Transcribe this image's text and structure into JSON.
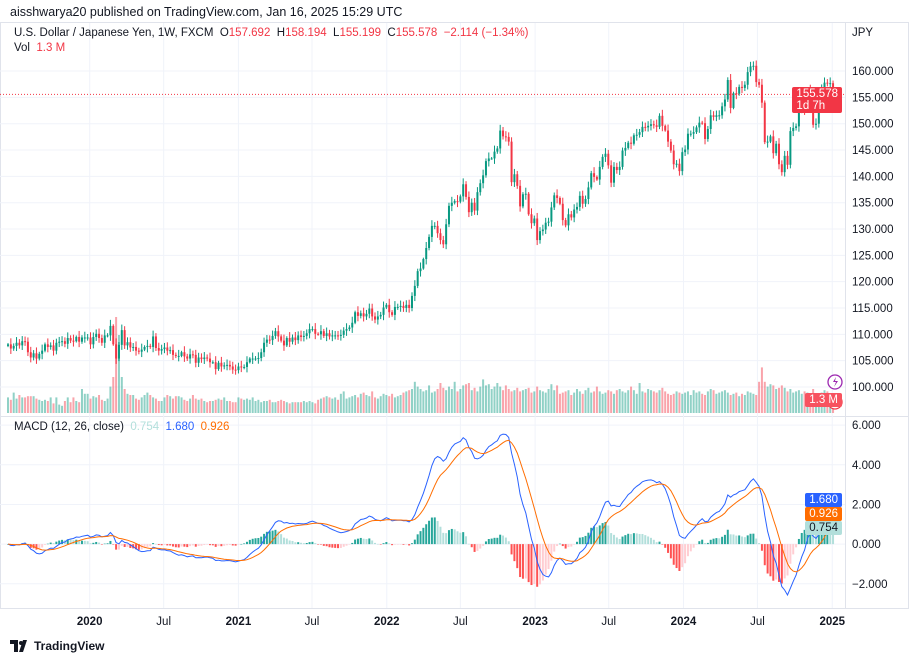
{
  "header": {
    "publisher": "aisshwarya20 published on TradingView.com, Jan 16, 2025 15:29 UTC",
    "currency": "JPY"
  },
  "legend": {
    "symbol": "U.S. Dollar / Japanese Yen, 1W, FXCM",
    "open_label": "O",
    "open": "157.692",
    "high_label": "H",
    "high": "158.194",
    "low_label": "L",
    "low": "155.199",
    "close_label": "C",
    "close": "155.578",
    "change": "−2.114 (−1.34%)",
    "vol_label": "Vol",
    "vol": "1.3 M"
  },
  "price_tag": {
    "price": "155.578",
    "countdown": "1d 7h",
    "volume": "1.3 M"
  },
  "macd": {
    "title": "MACD (12, 26, close)",
    "histogram": "0.754",
    "macd": "1.680",
    "signal": "0.926"
  },
  "colors": {
    "up": "#089981",
    "down": "#F23645",
    "macd": "#2962FF",
    "signal": "#FF6D00",
    "hist_up": "#26A69A",
    "hist_up_light": "#B2DFDB",
    "hist_down": "#FF5252",
    "hist_down_light": "#FFCDD2",
    "alert": "#9C27B0"
  },
  "footer": {
    "logo": "TradingView"
  },
  "chart_data": {
    "type": "candlestick",
    "interval": "1W",
    "first_week": "2019-06-14",
    "price_ylim": [
      95.06,
      164.0
    ],
    "price_ticks": [
      "160.000",
      "155.000",
      "150.000",
      "145.000",
      "140.000",
      "135.000",
      "130.000",
      "125.000",
      "120.000",
      "115.000",
      "110.000",
      "105.000",
      "100.000"
    ],
    "macd_ylim": [
      -2.97,
      6.26
    ],
    "macd_ticks": [
      "6.000",
      "4.000",
      "2.000",
      "0.000",
      "−2.000"
    ],
    "volume_unit": "M",
    "x_ticks": [
      {
        "label": "2020",
        "date": "2020-01-01",
        "bold": true
      },
      {
        "label": "Jul",
        "date": "2020-07-01"
      },
      {
        "label": "2021",
        "date": "2021-01-01",
        "bold": true
      },
      {
        "label": "Jul",
        "date": "2021-07-01"
      },
      {
        "label": "2022",
        "date": "2022-01-01",
        "bold": true
      },
      {
        "label": "Jul",
        "date": "2022-07-01"
      },
      {
        "label": "2023",
        "date": "2023-01-01",
        "bold": true
      },
      {
        "label": "Jul",
        "date": "2023-07-01"
      },
      {
        "label": "2024",
        "date": "2024-01-01",
        "bold": true
      },
      {
        "label": "Jul",
        "date": "2024-07-01"
      },
      {
        "label": "2025",
        "date": "2025-01-01",
        "bold": true
      }
    ],
    "last_open": 157.692,
    "last_high": 158.194,
    "last_low": 155.199,
    "close": [
      108.1,
      107.3,
      107.8,
      108.4,
      107.9,
      108.7,
      108.6,
      106.6,
      105.6,
      106.4,
      105.4,
      106.3,
      106.9,
      108.1,
      107.6,
      107.9,
      106.9,
      108.4,
      108.6,
      108.7,
      108.2,
      109.3,
      108.8,
      108.7,
      109.5,
      108.6,
      109.4,
      109.4,
      109.4,
      108.1,
      109.5,
      110.1,
      109.3,
      108.4,
      109.8,
      109.8,
      111.6,
      108.1,
      105.4,
      108.0,
      110.8,
      107.9,
      108.5,
      107.5,
      107.6,
      106.9,
      106.7,
      107.1,
      107.6,
      107.8,
      107.6,
      109.6,
      107.4,
      106.9,
      107.2,
      107.5,
      106.9,
      107.0,
      106.1,
      105.9,
      105.9,
      106.6,
      105.8,
      105.4,
      106.2,
      106.1,
      104.6,
      105.6,
      105.3,
      105.6,
      105.4,
      104.7,
      104.7,
      103.4,
      104.6,
      103.9,
      104.1,
      104.2,
      103.9,
      103.3,
      103.2,
      103.9,
      103.8,
      103.8,
      104.7,
      105.4,
      105.4,
      105.4,
      105.5,
      106.6,
      108.4,
      109.0,
      108.9,
      109.7,
      110.6,
      109.6,
      108.8,
      107.9,
      109.3,
      108.6,
      109.4,
      108.9,
      109.8,
      109.5,
      109.7,
      110.2,
      111.0,
      111.0,
      110.1,
      110.0,
      110.6,
      109.7,
      110.2,
      109.6,
      109.8,
      109.8,
      109.7,
      109.9,
      110.7,
      111.0,
      111.3,
      112.2,
      114.2,
      113.5,
      114.0,
      113.4,
      113.9,
      114.9,
      113.4,
      112.8,
      113.4,
      113.7,
      115.1,
      115.6,
      114.2,
      113.7,
      115.2,
      115.2,
      115.4,
      115.0,
      115.6,
      115.0,
      117.3,
      119.2,
      122.0,
      122.5,
      124.3,
      126.4,
      128.5,
      130.6,
      130.6,
      129.2,
      127.9,
      127.1,
      130.9,
      134.4,
      135.0,
      135.3,
      135.2,
      136.2,
      138.5,
      136.1,
      133.2,
      135.0,
      133.5,
      137.0,
      138.7,
      140.2,
      142.9,
      143.4,
      143.4,
      144.7,
      145.3,
      148.7,
      147.6,
      147.5,
      146.6,
      138.9,
      140.4,
      138.2,
      134.3,
      136.6,
      136.7,
      132.8,
      131.1,
      132.0,
      127.9,
      129.6,
      129.9,
      131.2,
      131.4,
      134.1,
      136.4,
      135.9,
      134.8,
      131.7,
      130.7,
      132.8,
      132.2,
      133.7,
      134.2,
      136.3,
      134.8,
      135.7,
      137.9,
      140.6,
      139.9,
      139.4,
      141.8,
      143.7,
      144.3,
      142.1,
      138.8,
      141.8,
      141.2,
      141.8,
      144.9,
      145.4,
      146.4,
      146.2,
      147.8,
      147.9,
      148.4,
      149.4,
      149.3,
      149.6,
      149.9,
      149.7,
      149.4,
      151.5,
      149.6,
      148.7,
      146.6,
      144.9,
      142.3,
      142.4,
      141.0,
      144.6,
      145.1,
      148.1,
      148.1,
      148.4,
      149.3,
      150.2,
      150.1,
      147.1,
      149.0,
      151.6,
      151.3,
      151.6,
      151.6,
      153.3,
      154.6,
      158.3,
      153.0,
      155.8,
      155.7,
      157.0,
      156.8,
      157.4,
      159.8,
      160.9,
      161.0,
      157.9,
      157.4,
      154.0,
      146.5,
      146.6,
      147.6,
      144.4,
      146.2,
      142.3,
      140.8,
      143.9,
      142.2,
      148.6,
      149.2,
      149.5,
      152.3,
      152.9,
      152.7,
      156.3,
      154.7,
      149.8,
      150.0,
      153.6,
      156.6,
      157.8,
      157.7,
      157.7,
      155.578
    ],
    "volume": [
      1.3,
      1.1,
      1.7,
      1.2,
      1.5,
      1.3,
      1.3,
      1.4,
      1.4,
      1.4,
      1.2,
      1.1,
      1.0,
      1.1,
      1.0,
      1.3,
      0.8,
      1.3,
      0.7,
      0.6,
      1.0,
      1.3,
      0.9,
      1.3,
      1.0,
      0.9,
      2.0,
      1.6,
      1.6,
      1.2,
      1.4,
      1.3,
      1.5,
      1.1,
      1.0,
      1.2,
      2.2,
      3.0,
      8.0,
      6.5,
      3.0,
      2.0,
      1.6,
      1.5,
      1.5,
      1.2,
      1.1,
      1.3,
      1.5,
      1.7,
      1.5,
      1.3,
      1.2,
      1.0,
      1.0,
      1.3,
      1.5,
      1.4,
      1.2,
      1.4,
      1.4,
      1.3,
      1.1,
      1.0,
      1.2,
      1.5,
      1.2,
      1.1,
      1.2,
      1.0,
      0.9,
      1.0,
      1.0,
      1.1,
      1.2,
      1.1,
      1.3,
      1.0,
      1.0,
      0.9,
      0.9,
      1.3,
      1.2,
      1.1,
      1.2,
      1.1,
      1.3,
      1.0,
      1.1,
      0.9,
      1.0,
      1.0,
      1.1,
      0.9,
      0.9,
      1.0,
      1.1,
      1.0,
      0.9,
      0.8,
      0.9,
      0.9,
      0.9,
      0.9,
      1.0,
      0.9,
      1.0,
      0.9,
      0.8,
      1.1,
      1.2,
      1.3,
      1.4,
      1.3,
      1.2,
      1.3,
      1.1,
      1.6,
      1.8,
      1.2,
      1.3,
      1.4,
      1.5,
      1.3,
      1.6,
      1.7,
      1.5,
      1.4,
      1.8,
      1.3,
      1.2,
      1.4,
      1.6,
      1.5,
      1.4,
      1.6,
      1.3,
      1.4,
      1.5,
      1.7,
      1.8,
      1.9,
      2.0,
      2.6,
      2.2,
      2.0,
      1.8,
      1.9,
      2.3,
      1.7,
      1.8,
      2.0,
      2.5,
      2.1,
      1.9,
      2.2,
      2.0,
      2.6,
      1.8,
      2.0,
      2.3,
      2.4,
      2.5,
      1.9,
      2.1,
      1.8,
      2.2,
      2.8,
      2.3,
      2.4,
      2.0,
      2.2,
      2.5,
      2.2,
      1.9,
      2.3,
      2.0,
      1.8,
      1.9,
      2.1,
      1.8,
      1.9,
      2.0,
      2.1,
      1.7,
      1.8,
      2.2,
      1.9,
      1.8,
      1.7,
      2.0,
      2.4,
      1.9,
      2.3,
      1.6,
      1.7,
      1.8,
      1.9,
      1.5,
      1.7,
      2.0,
      1.8,
      1.6,
      1.9,
      2.1,
      1.7,
      1.8,
      2.2,
      1.8,
      1.6,
      1.7,
      1.9,
      1.8,
      1.6,
      1.9,
      2.0,
      1.8,
      1.7,
      1.9,
      2.2,
      1.9,
      1.6,
      2.5,
      1.8,
      1.7,
      2.0,
      1.9,
      1.8,
      1.7,
      1.9,
      2.1,
      1.8,
      1.6,
      1.5,
      1.6,
      1.8,
      1.7,
      1.6,
      1.7,
      1.8,
      1.5,
      1.9,
      1.7,
      1.8,
      1.6,
      1.5,
      1.8,
      2.0,
      1.9,
      1.6,
      1.7,
      1.8,
      1.9,
      1.7,
      1.5,
      1.6,
      1.7,
      1.4,
      1.6,
      1.5,
      1.8,
      1.7,
      1.6,
      1.5,
      2.6,
      3.8,
      2.6,
      2.2,
      2.4,
      2.3,
      2.0,
      2.1,
      2.3,
      2.1,
      1.8,
      2.0,
      1.7,
      1.8,
      1.9,
      1.6,
      1.8,
      1.7,
      1.5,
      2.0,
      1.6,
      1.5,
      1.7,
      1.9,
      1.8,
      1.6,
      1.3
    ]
  }
}
